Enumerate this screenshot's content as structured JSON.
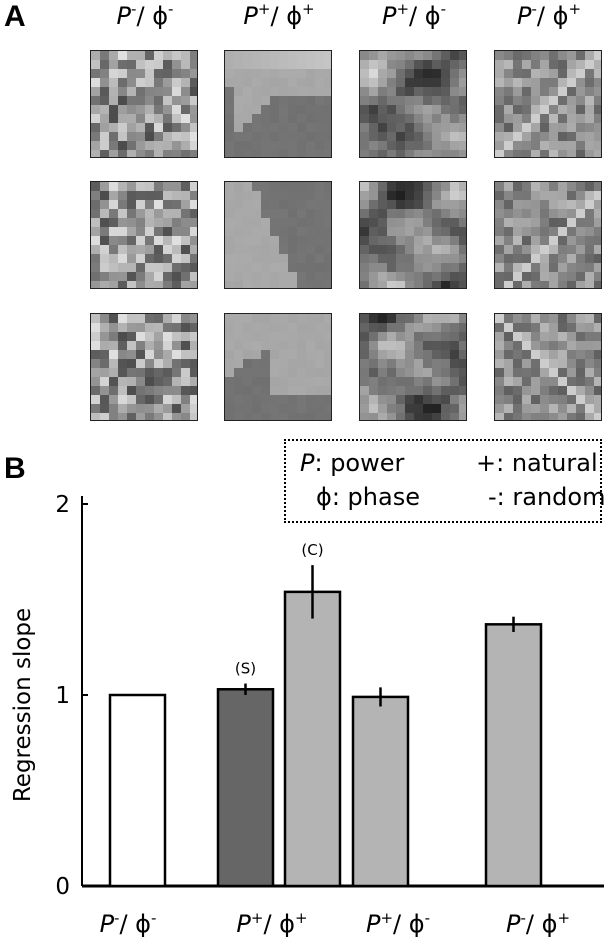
{
  "panels": {
    "a": "A",
    "b": "B"
  },
  "columns": [
    {
      "p_sign": "-",
      "phi_sign": "-"
    },
    {
      "p_sign": "+",
      "phi_sign": "+"
    },
    {
      "p_sign": "+",
      "phi_sign": "-"
    },
    {
      "p_sign": "-",
      "phi_sign": "+"
    }
  ],
  "label_parts": {
    "p": "P",
    "phi": "ϕ",
    "slash": "/"
  },
  "tile_kinds": [
    "random-noise",
    "natural-smooth",
    "power-natural-phase-random",
    "phase-natural-power-random"
  ],
  "legend": {
    "power": {
      "symbol": "P",
      "text": ": power"
    },
    "phase": {
      "symbol": "ϕ",
      "text": ": phase"
    },
    "natural": "+: natural",
    "random": "-: random"
  },
  "chart_data": {
    "type": "bar",
    "ylabel": "Regression slope",
    "ylim": [
      0,
      2
    ],
    "yticks": [
      0,
      1,
      2
    ],
    "categories": [
      "P-/ϕ-",
      "P+/ϕ+",
      "P+/ϕ-",
      "P-/ϕ+"
    ],
    "bars": [
      {
        "category": "P-/ϕ-",
        "value": 1.0,
        "err": 0.0,
        "color": "#ffffff",
        "annotation": ""
      },
      {
        "category": "P+/ϕ+",
        "value": 1.03,
        "err": 0.03,
        "color": "#666666",
        "annotation": "(S)"
      },
      {
        "category": "P+/ϕ+",
        "value": 1.54,
        "err": 0.14,
        "color": "#b4b4b4",
        "annotation": "(C)"
      },
      {
        "category": "P+/ϕ-",
        "value": 0.99,
        "err": 0.05,
        "color": "#b4b4b4",
        "annotation": ""
      },
      {
        "category": "P-/ϕ+",
        "value": 1.37,
        "err": 0.04,
        "color": "#b4b4b4",
        "annotation": ""
      }
    ],
    "grid": false,
    "legend_position": "top-right"
  }
}
